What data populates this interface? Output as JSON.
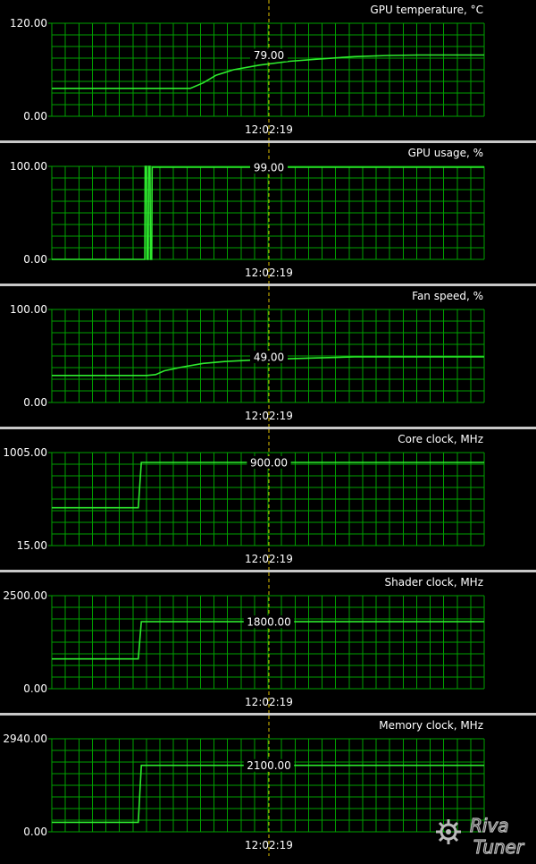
{
  "colors": {
    "background": "#000000",
    "grid": "#00a000",
    "trace": "#2eea2e",
    "text": "#ffffff",
    "cursor": "#e0c000",
    "separator": "#c8c8c8"
  },
  "watermark": {
    "text_top": "Riva",
    "text_bottom": "Tuner",
    "icon": "gear-icon"
  },
  "chart_data": [
    {
      "type": "line",
      "title": "GPU temperature, °C",
      "ylim": [
        0,
        120
      ],
      "ytick_labels": [
        "120.00",
        "0.00"
      ],
      "time_label": "12:02:19",
      "current_value_label": "79.00",
      "grid": true,
      "x": [
        0,
        20,
        32,
        35,
        38,
        42,
        48,
        55,
        62,
        70,
        78,
        85,
        100
      ],
      "y": [
        36,
        36,
        36,
        43,
        53,
        60,
        66,
        71,
        74,
        77,
        78.5,
        79,
        79
      ]
    },
    {
      "type": "line",
      "title": "GPU usage, %",
      "ylim": [
        0,
        100
      ],
      "ytick_labels": [
        "100.00",
        "0.00"
      ],
      "time_label": "12:02:19",
      "current_value_label": "99.00",
      "grid": true,
      "x": [
        0,
        21.5,
        21.6,
        21.9,
        22.0,
        22.3,
        22.4,
        22.7,
        22.8,
        23.1,
        23.2,
        100
      ],
      "y": [
        0,
        0,
        100,
        100,
        0,
        0,
        100,
        100,
        0,
        0,
        99,
        99
      ]
    },
    {
      "type": "line",
      "title": "Fan speed, %",
      "ylim": [
        0,
        100
      ],
      "ytick_labels": [
        "100.00",
        "0.00"
      ],
      "time_label": "12:02:19",
      "current_value_label": "49.00",
      "grid": true,
      "x": [
        0,
        22,
        24,
        26,
        30,
        35,
        40,
        48,
        55,
        62,
        70,
        80,
        90,
        100
      ],
      "y": [
        29,
        29,
        30,
        34,
        38,
        42,
        44,
        46,
        47,
        48,
        49,
        49,
        49,
        49
      ]
    },
    {
      "type": "line",
      "title": "Core clock, MHz",
      "ylim": [
        15,
        1005
      ],
      "ytick_labels": [
        "1005.00",
        "15.00"
      ],
      "time_label": "12:02:19",
      "current_value_label": "900.00",
      "grid": true,
      "x": [
        0,
        20,
        20.7,
        100
      ],
      "y": [
        418,
        418,
        900,
        900
      ]
    },
    {
      "type": "line",
      "title": "Shader clock, MHz",
      "ylim": [
        0,
        2500
      ],
      "ytick_labels": [
        "2500.00",
        "0.00"
      ],
      "time_label": "12:02:19",
      "current_value_label": "1800.00",
      "grid": true,
      "x": [
        0,
        20,
        20.7,
        100
      ],
      "y": [
        800,
        800,
        1800,
        1800
      ]
    },
    {
      "type": "line",
      "title": "Memory clock, MHz",
      "ylim": [
        0,
        2940
      ],
      "ytick_labels": [
        "2940.00",
        "0.00"
      ],
      "time_label": "12:02:19",
      "current_value_label": "2100.00",
      "grid": true,
      "x": [
        0,
        20,
        20.7,
        100
      ],
      "y": [
        300,
        300,
        2100,
        2100
      ]
    }
  ]
}
